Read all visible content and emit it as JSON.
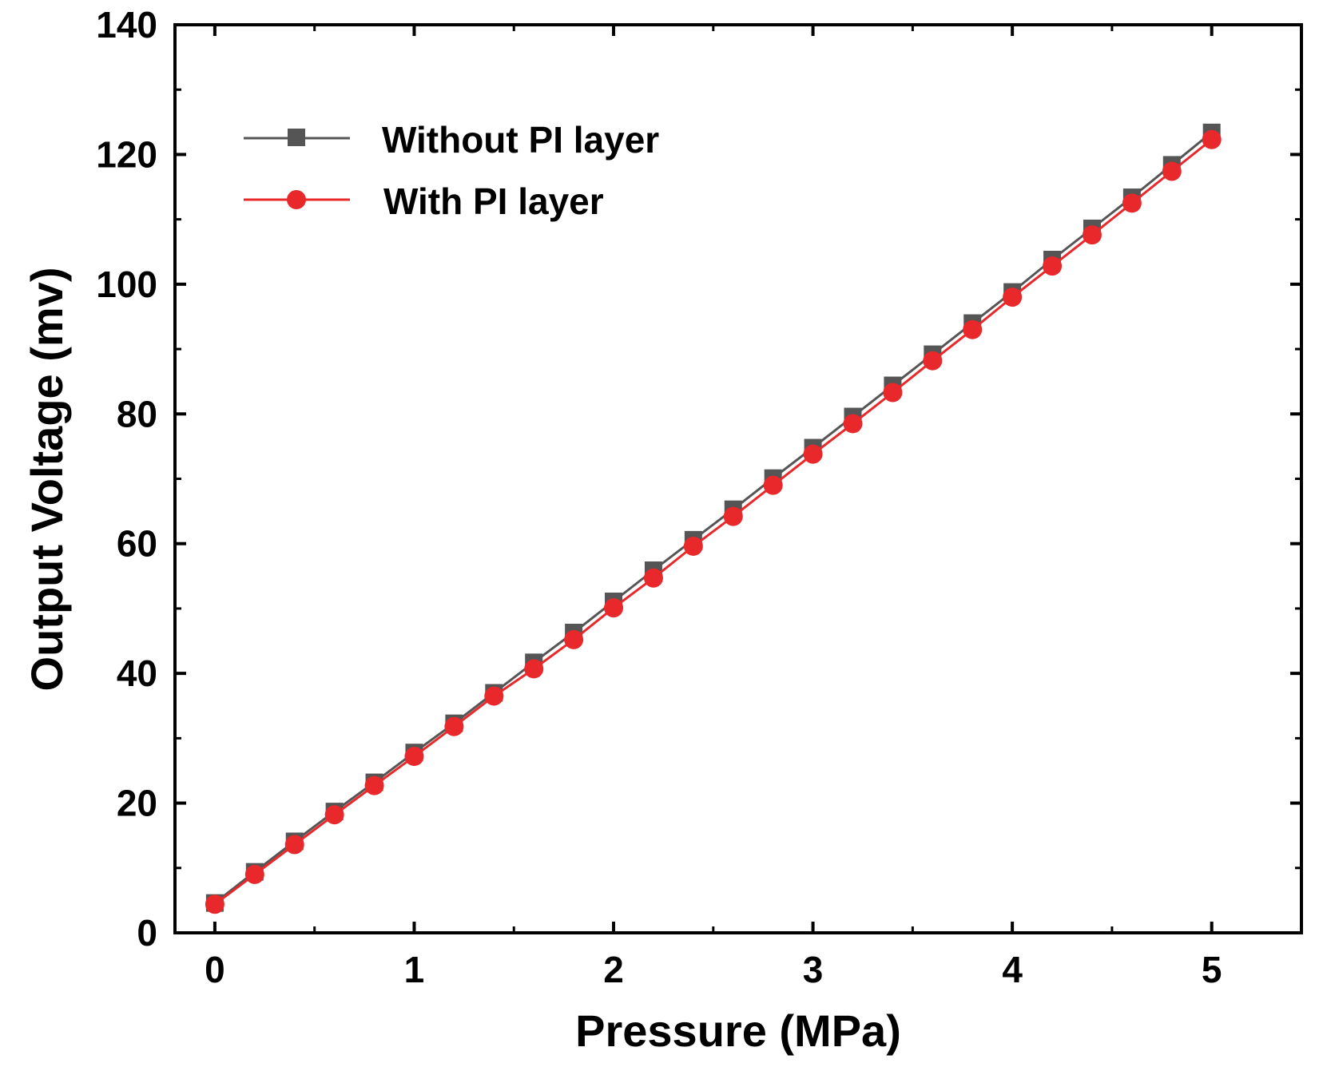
{
  "chart_data": {
    "type": "line",
    "title": "",
    "xlabel": "Pressure (MPa)",
    "ylabel": "Output Voltage (mv)",
    "xlim": [
      -0.2,
      5.45
    ],
    "ylim": [
      0,
      140
    ],
    "xticks": [
      0,
      1,
      2,
      3,
      4,
      5
    ],
    "yticks": [
      0,
      20,
      40,
      60,
      80,
      100,
      120,
      140
    ],
    "grid": false,
    "legend_position": "top-left",
    "x": [
      0,
      0.2,
      0.4,
      0.6,
      0.8,
      1.0,
      1.2,
      1.4,
      1.6,
      1.8,
      2.0,
      2.2,
      2.4,
      2.6,
      2.8,
      3.0,
      3.2,
      3.4,
      3.6,
      3.8,
      4.0,
      4.2,
      4.4,
      4.6,
      4.8,
      5.0
    ],
    "series": [
      {
        "name": "Without PI layer",
        "marker": "square",
        "color": "#555555",
        "values": [
          4.6,
          9.4,
          14.1,
          18.7,
          23.2,
          27.8,
          32.3,
          37.0,
          41.7,
          46.3,
          51.1,
          55.9,
          60.6,
          65.3,
          70.1,
          74.8,
          79.6,
          84.4,
          89.2,
          94.0,
          98.8,
          103.8,
          108.6,
          113.4,
          118.4,
          123.4
        ]
      },
      {
        "name": "With PI layer",
        "marker": "circle",
        "color": "#e8282a",
        "values": [
          4.4,
          9.0,
          13.6,
          18.2,
          22.7,
          27.2,
          31.8,
          36.5,
          40.7,
          45.2,
          50.1,
          54.7,
          59.6,
          64.2,
          69.0,
          73.8,
          78.5,
          83.3,
          88.2,
          93.0,
          98.0,
          102.8,
          107.6,
          112.5,
          117.4,
          122.3
        ]
      }
    ]
  }
}
